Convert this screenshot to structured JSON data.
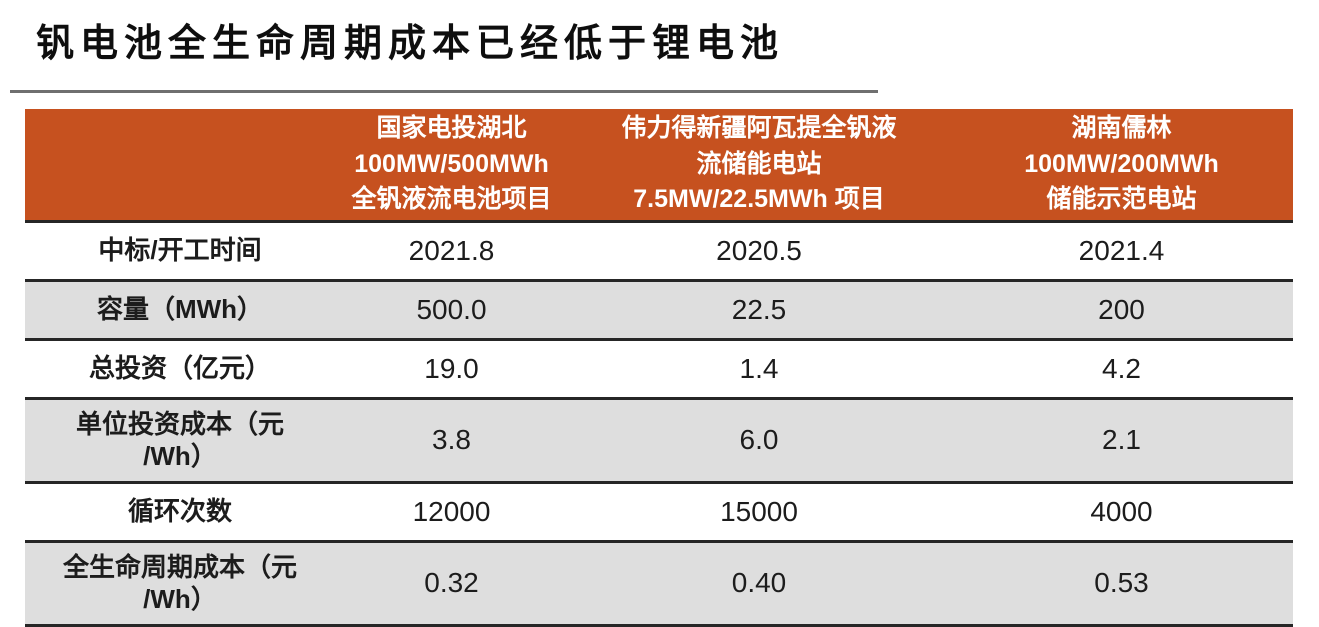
{
  "title": "钒电池全生命周期成本已经低于锂电池",
  "table": {
    "header": {
      "corner": "",
      "columns": [
        "国家电投湖北\n100MW/500MWh\n全钒液流电池项目",
        "伟力得新疆阿瓦提全钒液\n流储能电站\n7.5MW/22.5MWh 项目",
        "湖南儒林\n100MW/200MWh\n储能示范电站"
      ]
    },
    "rows": [
      {
        "label": "中标/开工时间",
        "values": [
          "2021.8",
          "2020.5",
          "2021.4"
        ]
      },
      {
        "label": "容量（MWh）",
        "values": [
          "500.0",
          "22.5",
          "200"
        ]
      },
      {
        "label": "总投资（亿元）",
        "values": [
          "19.0",
          "1.4",
          "4.2"
        ]
      },
      {
        "label": "单位投资成本（元\n/Wh）",
        "values": [
          "3.8",
          "6.0",
          "2.1"
        ]
      },
      {
        "label": "循环次数",
        "values": [
          "12000",
          "15000",
          "4000"
        ]
      },
      {
        "label": "全生命周期成本（元\n/Wh）",
        "values": [
          "0.32",
          "0.40",
          "0.53"
        ]
      }
    ]
  },
  "colors": {
    "header_bg": "#C6511F",
    "header_text": "#FFFFFF",
    "stripe_row_bg": "#DEDEDE",
    "white_row_bg": "#FFFFFF",
    "divider": "#262626",
    "body_text": "#1C1C1C",
    "title_text": "#0E0E0E",
    "title_underline": "#6F6F6F"
  },
  "chart_data": {
    "type": "table",
    "title": "钒电池全生命周期成本已经低于锂电池",
    "columns": [
      "",
      "国家电投湖北 100MW/500MWh 全钒液流电池项目",
      "伟力得新疆阿瓦提全钒液流储能电站 7.5MW/22.5MWh 项目",
      "湖南儒林 100MW/200MWh 储能示范电站"
    ],
    "rows": [
      {
        "label": "中标/开工时间",
        "values": [
          "2021.8",
          "2020.5",
          "2021.4"
        ]
      },
      {
        "label": "容量（MWh）",
        "values": [
          500.0,
          22.5,
          200
        ]
      },
      {
        "label": "总投资（亿元）",
        "values": [
          19.0,
          1.4,
          4.2
        ]
      },
      {
        "label": "单位投资成本（元/Wh）",
        "values": [
          3.8,
          6.0,
          2.1
        ]
      },
      {
        "label": "循环次数",
        "values": [
          12000,
          15000,
          4000
        ]
      },
      {
        "label": "全生命周期成本（元/Wh）",
        "values": [
          0.32,
          0.4,
          0.53
        ]
      }
    ],
    "layout": {
      "header_fill": "#C6511F",
      "row_striping": true,
      "grid": "horizontal-only"
    }
  }
}
